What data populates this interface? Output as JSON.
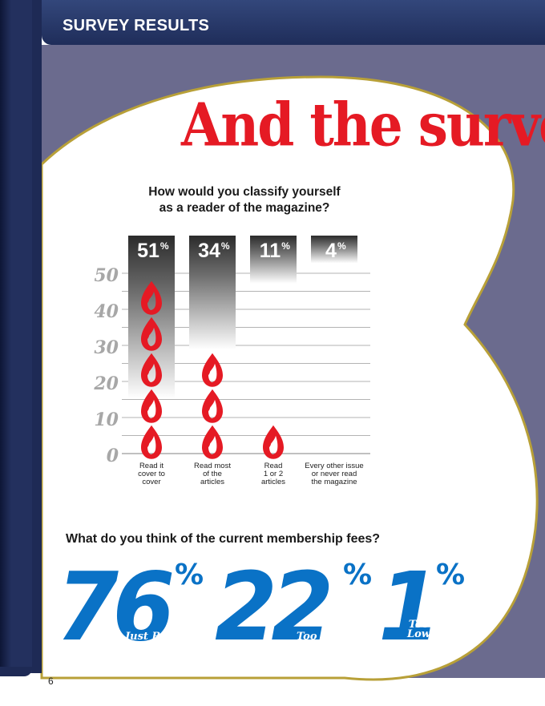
{
  "header": {
    "section_label": "SURVEY RESULTS"
  },
  "title": "And the survey",
  "question1": {
    "line1": "How would you classify yourself",
    "line2": "as a reader of the magazine?"
  },
  "question2": "What do you think of the current membership fees?",
  "colors": {
    "accent_red": "#e51a24",
    "fee_blue": "#0a72c6",
    "header_navy": "#23305e",
    "background_purple": "#6b6b8e",
    "outline_gold": "#b8a038"
  },
  "chart_data": {
    "type": "bar",
    "ylim": [
      0,
      50
    ],
    "yticks": [
      "0",
      "10",
      "20",
      "30",
      "40",
      "50"
    ],
    "grid": true,
    "categories": [
      [
        "Read it",
        "cover to",
        "cover"
      ],
      [
        "Read most",
        "of the",
        "articles"
      ],
      [
        "Read",
        "1 or 2",
        "articles"
      ],
      [
        "Every other issue",
        "or never read",
        "the magazine"
      ]
    ],
    "values": [
      51,
      34,
      11,
      4
    ],
    "value_labels": [
      "51",
      "34",
      "11",
      "4"
    ],
    "percent_sign": "%"
  },
  "fees": [
    {
      "value": "76",
      "percent_sign": "%",
      "label_line1": "Just Right",
      "label_line2": ""
    },
    {
      "value": "22",
      "percent_sign": "%",
      "label_line1": "Too High",
      "label_line2": ""
    },
    {
      "value": "1",
      "percent_sign": "%",
      "label_line1": "Too",
      "label_line2": "Low"
    }
  ],
  "page_number": "6"
}
